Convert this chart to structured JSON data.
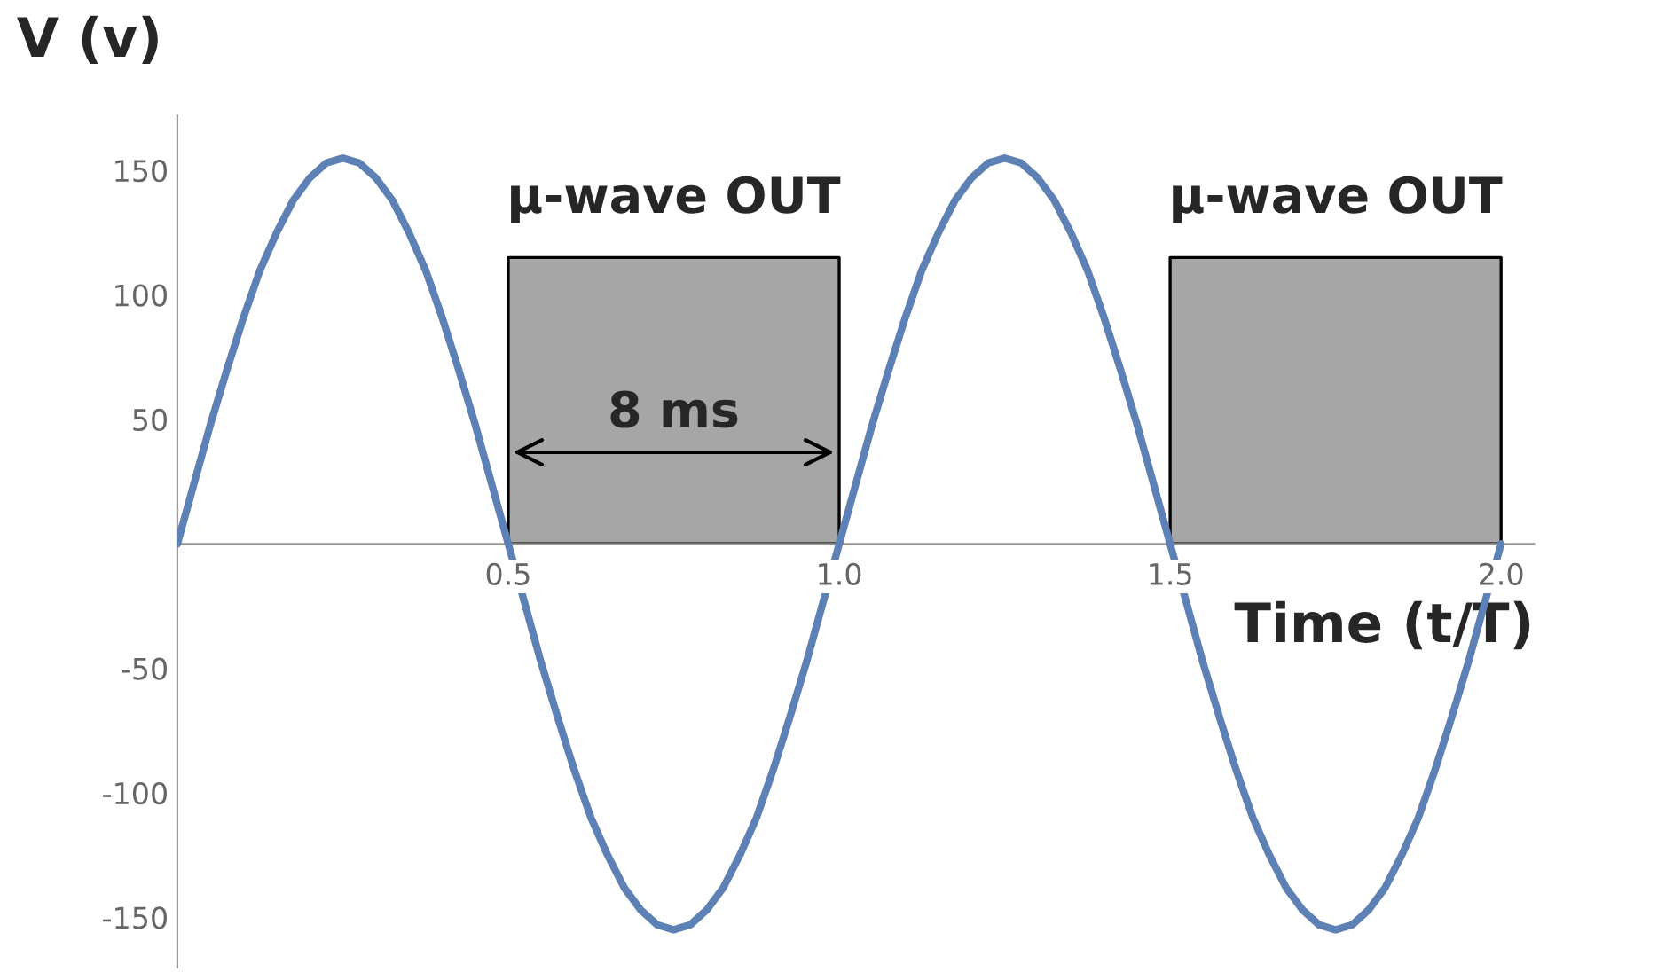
{
  "chart_data": {
    "type": "line",
    "xlabel": "Time (t/T)",
    "ylabel": "V (v)",
    "xlim": [
      0,
      2.05
    ],
    "ylim": [
      -170,
      172
    ],
    "xticks": [
      {
        "value": 0.5,
        "label": "0.5"
      },
      {
        "value": 1.0,
        "label": "1.0"
      },
      {
        "value": 1.5,
        "label": "1.5"
      },
      {
        "value": 2.0,
        "label": "2.0"
      }
    ],
    "yticks": [
      -150,
      -100,
      -50,
      50,
      100,
      150
    ],
    "grid": false,
    "marker": "none",
    "line_style": "solid",
    "series": [
      {
        "type": "area",
        "color": "#a6a6a6",
        "x": [
          0.5,
          1.0
        ],
        "values": [
          115,
          115
        ]
      },
      {
        "type": "area",
        "color": "#a6a6a6",
        "x": [
          1.5,
          2.0
        ],
        "values": [
          115,
          115
        ]
      },
      {
        "color": "#5e81b5",
        "x": [
          0,
          0.025,
          0.05,
          0.075,
          0.1,
          0.125,
          0.15,
          0.175,
          0.2,
          0.225,
          0.25,
          0.275,
          0.3,
          0.325,
          0.35,
          0.375,
          0.4,
          0.425,
          0.45,
          0.475,
          0.5,
          0.525,
          0.55,
          0.575,
          0.6,
          0.625,
          0.65,
          0.675,
          0.7,
          0.725,
          0.75,
          0.775,
          0.8,
          0.825,
          0.85,
          0.875,
          0.9,
          0.925,
          0.95,
          0.975,
          1.0,
          1.025,
          1.05,
          1.075,
          1.1,
          1.125,
          1.15,
          1.175,
          1.2,
          1.225,
          1.25,
          1.275,
          1.3,
          1.325,
          1.35,
          1.375,
          1.4,
          1.425,
          1.45,
          1.475,
          1.5,
          1.525,
          1.55,
          1.575,
          1.6,
          1.625,
          1.65,
          1.675,
          1.7,
          1.725,
          1.75,
          1.775,
          1.8,
          1.825,
          1.85,
          1.875,
          1.9,
          1.925,
          1.95,
          1.975,
          2.0
        ],
        "values": [
          0,
          24,
          48,
          70,
          91,
          110,
          125,
          138,
          147,
          153,
          155,
          153,
          147,
          138,
          125,
          110,
          91,
          70,
          48,
          24,
          0,
          -24,
          -48,
          -70,
          -91,
          -110,
          -125,
          -138,
          -147,
          -153,
          -155,
          -153,
          -147,
          -138,
          -125,
          -110,
          -91,
          -70,
          -48,
          -24,
          0,
          24,
          48,
          70,
          91,
          110,
          125,
          138,
          147,
          153,
          155,
          153,
          147,
          138,
          125,
          110,
          91,
          70,
          48,
          24,
          0,
          -24,
          -48,
          -70,
          -91,
          -110,
          -125,
          -138,
          -147,
          -153,
          -155,
          -153,
          -147,
          -138,
          -125,
          -110,
          -91,
          -70,
          -48,
          -24,
          0
        ]
      }
    ],
    "annotations": [
      "μ-wave OUT",
      "μ-wave OUT",
      "8 ms"
    ]
  }
}
